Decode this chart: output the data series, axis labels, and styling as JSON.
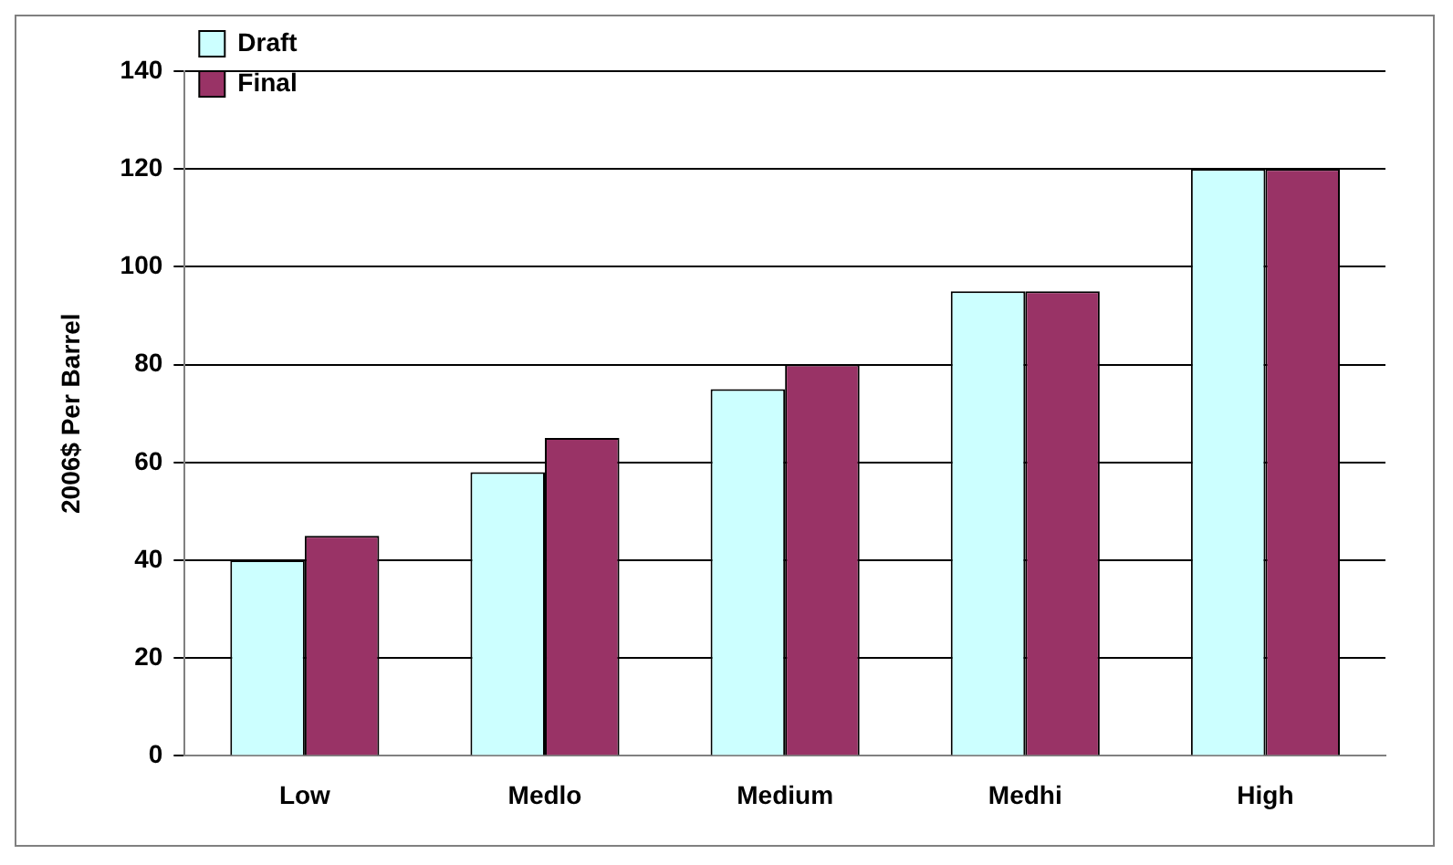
{
  "chart_data": {
    "type": "bar",
    "ylabel": "2006$ Per Barrel",
    "categories": [
      "Low",
      "Medlo",
      "Medium",
      "Medhi",
      "High"
    ],
    "series": [
      {
        "name": "Draft",
        "color": "#ccffff",
        "values": [
          40,
          58,
          75,
          95,
          120
        ]
      },
      {
        "name": "Final",
        "color": "#993366",
        "values": [
          45,
          65,
          80,
          95,
          120
        ]
      }
    ],
    "ylim": [
      0,
      140
    ],
    "yticks": [
      0,
      20,
      40,
      60,
      80,
      100,
      120,
      140
    ],
    "grid": "y",
    "legend": "top left"
  }
}
